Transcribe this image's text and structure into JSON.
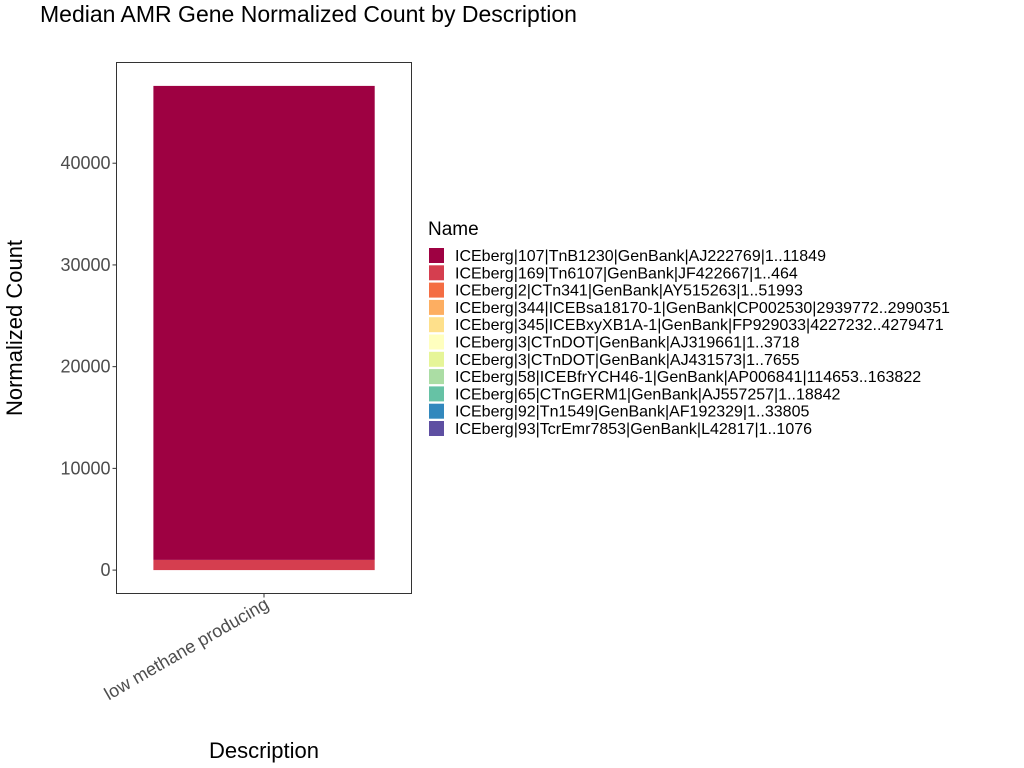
{
  "chart_data": {
    "type": "bar",
    "stacked": true,
    "title": "Median AMR Gene Normalized Count by Description",
    "xlabel": "Description",
    "ylabel": "Normalized Count",
    "categories": [
      "low methane producing"
    ],
    "ylim": [
      -2300,
      49900
    ],
    "yticks": [
      0,
      10000,
      20000,
      30000,
      40000
    ],
    "yticklabels": [
      "0",
      "10000",
      "20000",
      "30000",
      "40000"
    ],
    "legend": {
      "title": "Name",
      "placement": "right"
    },
    "series": [
      {
        "name": "ICEberg|107|TnB1230|GenBank|AJ222769|1..11849",
        "color": "#9E0142",
        "values": [
          46600
        ]
      },
      {
        "name": "ICEberg|169|Tn6107|GenBank|JF422667|1..464",
        "color": "#D53E4F",
        "values": [
          1000
        ]
      },
      {
        "name": "ICEberg|2|CTn341|GenBank|AY515263|1..51993",
        "color": "#F46D43",
        "values": [
          0
        ]
      },
      {
        "name": "ICEberg|344|ICEBsa18170-1|GenBank|CP002530|2939772..2990351",
        "color": "#FDAE61",
        "values": [
          0
        ]
      },
      {
        "name": "ICEberg|345|ICEBxyXB1A-1|GenBank|FP929033|4227232..4279471",
        "color": "#FEE08B",
        "values": [
          0
        ]
      },
      {
        "name": "ICEberg|3|CTnDOT|GenBank|AJ319661|1..3718",
        "color": "#FFFFBF",
        "values": [
          0
        ]
      },
      {
        "name": "ICEberg|3|CTnDOT|GenBank|AJ431573|1..7655",
        "color": "#E6F598",
        "values": [
          0
        ]
      },
      {
        "name": "ICEberg|58|ICEBfrYCH46-1|GenBank|AP006841|114653..163822",
        "color": "#ABDDA4",
        "values": [
          0
        ]
      },
      {
        "name": "ICEberg|65|CTnGERM1|GenBank|AJ557257|1..18842",
        "color": "#66C2A5",
        "values": [
          0
        ]
      },
      {
        "name": "ICEberg|92|Tn1549|GenBank|AF192329|1..33805",
        "color": "#3288BD",
        "values": [
          0
        ]
      },
      {
        "name": "ICEberg|93|TcrEmr7853|GenBank|L42817|1..1076",
        "color": "#5E4FA2",
        "values": [
          0
        ]
      }
    ]
  }
}
